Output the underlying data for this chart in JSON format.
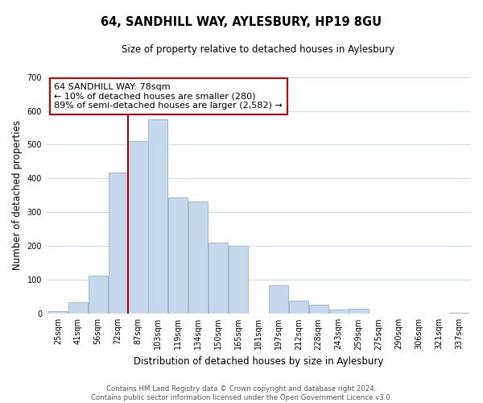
{
  "title": "64, SANDHILL WAY, AYLESBURY, HP19 8GU",
  "subtitle": "Size of property relative to detached houses in Aylesbury",
  "xlabel": "Distribution of detached houses by size in Aylesbury",
  "ylabel": "Number of detached properties",
  "categories": [
    "25sqm",
    "41sqm",
    "56sqm",
    "72sqm",
    "87sqm",
    "103sqm",
    "119sqm",
    "134sqm",
    "150sqm",
    "165sqm",
    "181sqm",
    "197sqm",
    "212sqm",
    "228sqm",
    "243sqm",
    "259sqm",
    "275sqm",
    "290sqm",
    "306sqm",
    "321sqm",
    "337sqm"
  ],
  "values": [
    8,
    35,
    113,
    418,
    510,
    575,
    345,
    333,
    210,
    200,
    0,
    83,
    38,
    27,
    13,
    14,
    0,
    0,
    0,
    0,
    4
  ],
  "bar_color": "#c6d9ec",
  "bar_edge_color": "#a0b8d0",
  "vline_color": "#aa0000",
  "annotation_text": "64 SANDHILL WAY: 78sqm\n← 10% of detached houses are smaller (280)\n89% of semi-detached houses are larger (2,582) →",
  "annotation_box_color": "#ffffff",
  "annotation_box_edge": "#cc0000",
  "ylim": [
    0,
    700
  ],
  "yticks": [
    0,
    100,
    200,
    300,
    400,
    500,
    600,
    700
  ],
  "footer_line1": "Contains HM Land Registry data © Crown copyright and database right 2024.",
  "footer_line2": "Contains public sector information licensed under the Open Government Licence v3.0.",
  "background_color": "#ffffff",
  "grid_color": "#cdd8e8"
}
